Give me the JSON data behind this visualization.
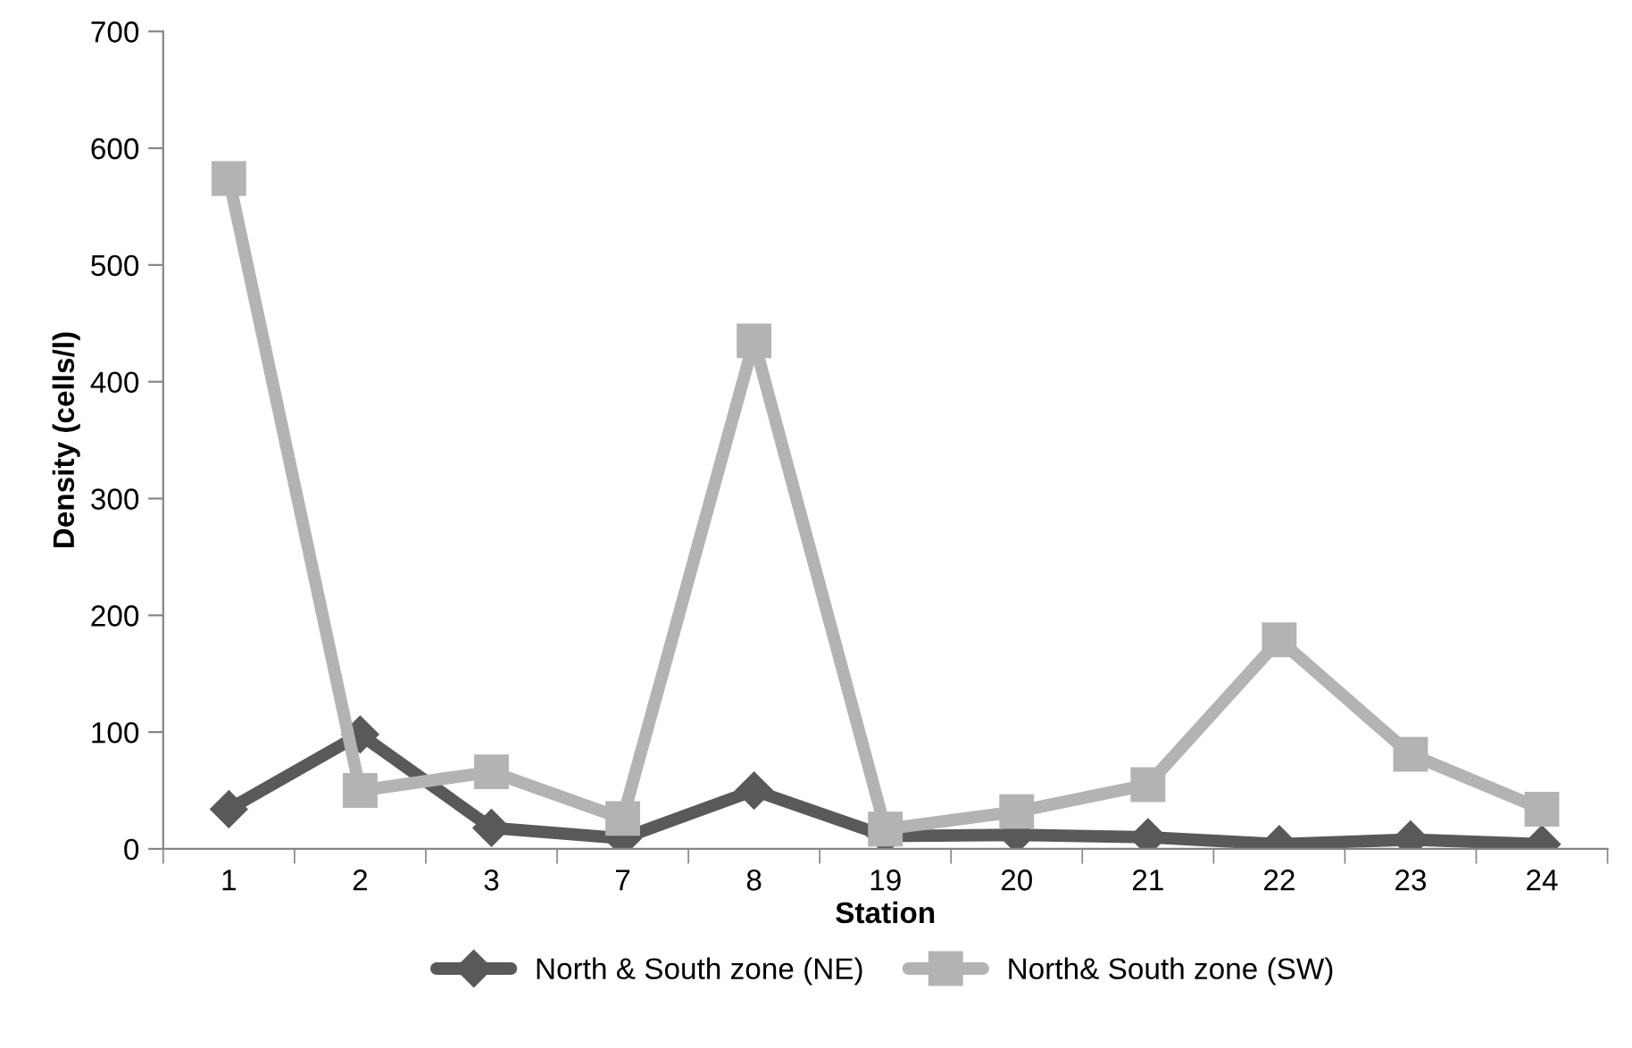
{
  "chart_data": {
    "type": "line",
    "xlabel": "Station",
    "ylabel": "Density (cells/l)",
    "categories": [
      "1",
      "2",
      "3",
      "7",
      "8",
      "19",
      "20",
      "21",
      "22",
      "23",
      "24"
    ],
    "series": [
      {
        "name": "North & South zone (NE)",
        "color": "#595959",
        "marker": "diamond",
        "values": [
          34,
          98,
          18,
          9,
          50,
          11,
          12,
          10,
          4,
          8,
          4
        ]
      },
      {
        "name": "North& South zone (SW)",
        "color": "#b3b3b3",
        "marker": "square",
        "values": [
          574,
          50,
          66,
          26,
          435,
          17,
          32,
          55,
          179,
          81,
          34
        ]
      }
    ],
    "ylim": [
      0,
      700
    ],
    "yticks": [
      0,
      100,
      200,
      300,
      400,
      500,
      600,
      700
    ],
    "grid": false,
    "legend": "bottom",
    "line_style": "solid"
  }
}
